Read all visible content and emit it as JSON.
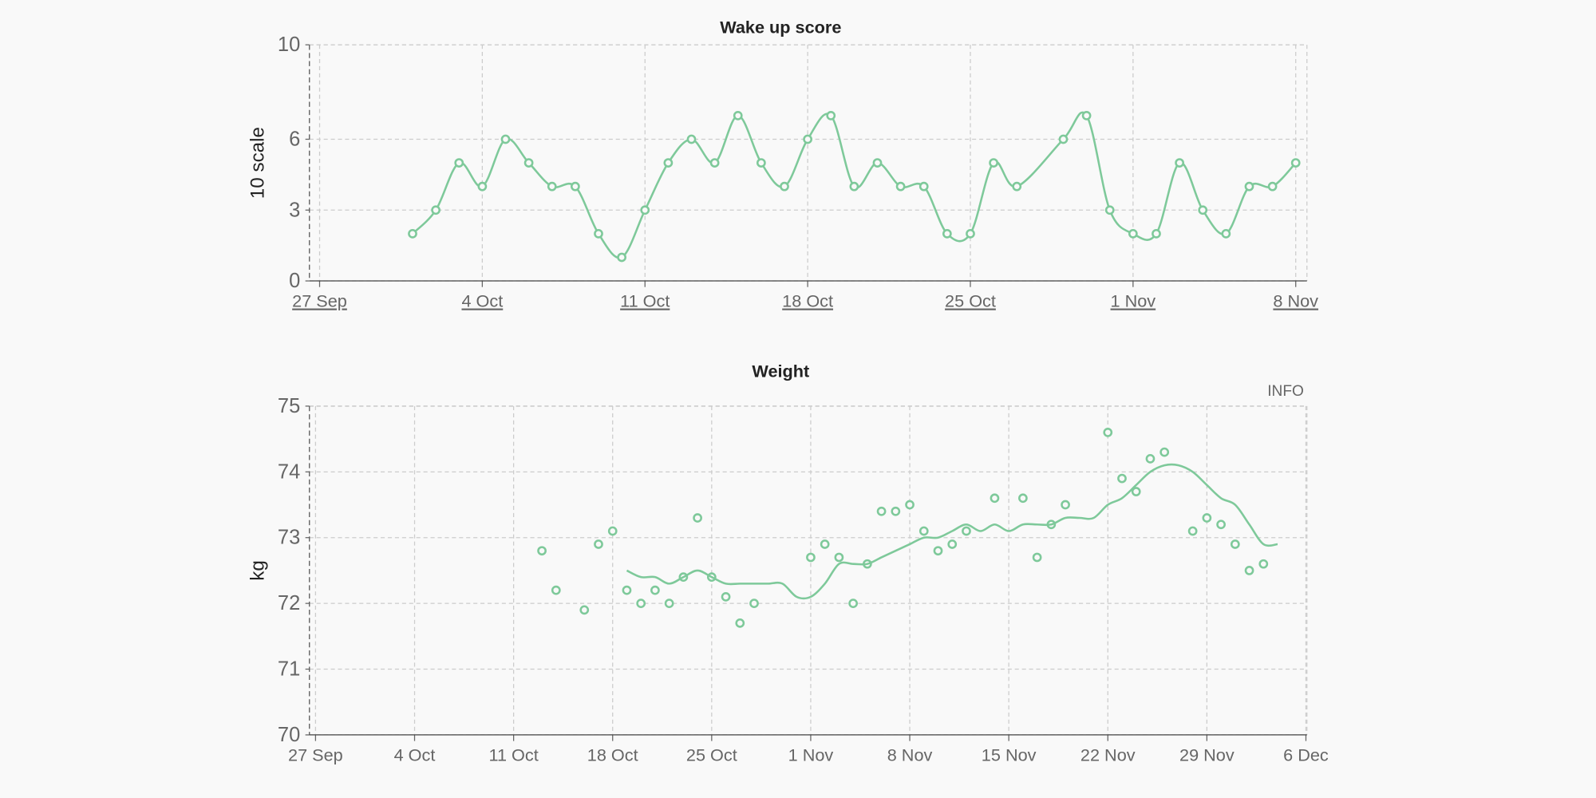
{
  "chart_data": [
    {
      "type": "line",
      "title": "Wake up score",
      "y_label": "10 scale",
      "xlim": [
        "27 Sep",
        "8 Nov"
      ],
      "xticks": [
        "27 Sep",
        "4 Oct",
        "11 Oct",
        "18 Oct",
        "25 Oct",
        "1 Nov",
        "8 Nov"
      ],
      "ylim": [
        0,
        10
      ],
      "yticks": [
        0,
        3,
        6,
        10
      ],
      "grid": true,
      "series": [
        {
          "color": "#7ec99a",
          "mode": "lines+markers",
          "x": [
            "1 Oct",
            "2 Oct",
            "3 Oct",
            "4 Oct",
            "5 Oct",
            "6 Oct",
            "7 Oct",
            "8 Oct",
            "9 Oct",
            "10 Oct",
            "11 Oct",
            "12 Oct",
            "13 Oct",
            "14 Oct",
            "15 Oct",
            "16 Oct",
            "17 Oct",
            "18 Oct",
            "19 Oct",
            "20 Oct",
            "21 Oct",
            "22 Oct",
            "23 Oct",
            "24 Oct",
            "25 Oct",
            "26 Oct",
            "27 Oct",
            "29 Oct",
            "30 Oct",
            "31 Oct",
            "1 Nov",
            "2 Nov",
            "3 Nov",
            "4 Nov",
            "5 Nov",
            "6 Nov",
            "7 Nov",
            "8 Nov"
          ],
          "values": [
            2,
            3,
            5,
            4,
            6,
            5,
            4,
            4,
            2,
            1,
            3,
            5,
            6,
            5,
            7,
            5,
            4,
            6,
            7,
            4,
            5,
            4,
            4,
            2,
            2,
            5,
            4,
            6,
            7,
            3,
            2,
            2,
            5,
            3,
            2,
            4,
            4,
            5
          ]
        }
      ]
    },
    {
      "type": "scatter",
      "title": "Weight",
      "y_label": "kg",
      "info_label": "INFO",
      "xlim": [
        "27 Sep",
        "6 Dec"
      ],
      "xticks": [
        "27 Sep",
        "4 Oct",
        "11 Oct",
        "18 Oct",
        "25 Oct",
        "1 Nov",
        "8 Nov",
        "15 Nov",
        "22 Nov",
        "29 Nov",
        "6 Dec"
      ],
      "ylim": [
        70,
        75
      ],
      "yticks": [
        70,
        71,
        72,
        73,
        74,
        75
      ],
      "grid": true,
      "series": [
        {
          "color": "#7ec99a",
          "mode": "markers",
          "x": [
            "13 Oct",
            "14 Oct",
            "16 Oct",
            "17 Oct",
            "18 Oct",
            "19 Oct",
            "20 Oct",
            "21 Oct",
            "22 Oct",
            "23 Oct",
            "24 Oct",
            "25 Oct",
            "26 Oct",
            "27 Oct",
            "28 Oct",
            "1 Nov",
            "2 Nov",
            "3 Nov",
            "4 Nov",
            "5 Nov",
            "6 Nov",
            "7 Nov",
            "8 Nov",
            "9 Nov",
            "10 Nov",
            "11 Nov",
            "12 Nov",
            "14 Nov",
            "16 Nov",
            "17 Nov",
            "18 Nov",
            "19 Nov",
            "22 Nov",
            "23 Nov",
            "24 Nov",
            "25 Nov",
            "26 Nov",
            "28 Nov",
            "29 Nov",
            "30 Nov",
            "1 Dec",
            "2 Dec",
            "3 Dec"
          ],
          "values": [
            72.8,
            72.2,
            71.9,
            72.9,
            73.1,
            72.2,
            72.0,
            72.2,
            72.0,
            72.4,
            73.3,
            72.4,
            72.1,
            71.7,
            72.0,
            72.7,
            72.9,
            72.7,
            72.0,
            72.6,
            73.4,
            73.4,
            73.5,
            73.1,
            72.8,
            72.9,
            73.1,
            73.6,
            73.6,
            72.7,
            73.2,
            73.5,
            74.6,
            73.9,
            73.7,
            74.2,
            74.3,
            73.1,
            73.3,
            73.2,
            72.9,
            72.5,
            72.6
          ]
        },
        {
          "color": "#7ec99a",
          "mode": "lines",
          "x": [
            "19 Oct",
            "20 Oct",
            "21 Oct",
            "22 Oct",
            "23 Oct",
            "24 Oct",
            "25 Oct",
            "26 Oct",
            "27 Oct",
            "28 Oct",
            "29 Oct",
            "30 Oct",
            "31 Oct",
            "1 Nov",
            "2 Nov",
            "3 Nov",
            "4 Nov",
            "5 Nov",
            "6 Nov",
            "7 Nov",
            "8 Nov",
            "9 Nov",
            "10 Nov",
            "11 Nov",
            "12 Nov",
            "13 Nov",
            "14 Nov",
            "15 Nov",
            "16 Nov",
            "17 Nov",
            "18 Nov",
            "19 Nov",
            "20 Nov",
            "21 Nov",
            "22 Nov",
            "23 Nov",
            "24 Nov",
            "25 Nov",
            "26 Nov",
            "27 Nov",
            "28 Nov",
            "29 Nov",
            "30 Nov",
            "1 Dec",
            "2 Dec",
            "3 Dec",
            "4 Dec"
          ],
          "values": [
            72.5,
            72.4,
            72.4,
            72.3,
            72.4,
            72.5,
            72.4,
            72.3,
            72.3,
            72.3,
            72.3,
            72.3,
            72.1,
            72.1,
            72.3,
            72.6,
            72.6,
            72.6,
            72.7,
            72.8,
            72.9,
            73.0,
            73.0,
            73.1,
            73.2,
            73.1,
            73.2,
            73.1,
            73.2,
            73.2,
            73.2,
            73.3,
            73.3,
            73.3,
            73.5,
            73.6,
            73.8,
            74.0,
            74.1,
            74.1,
            74.0,
            73.8,
            73.6,
            73.5,
            73.2,
            72.9,
            72.9
          ]
        }
      ]
    }
  ]
}
